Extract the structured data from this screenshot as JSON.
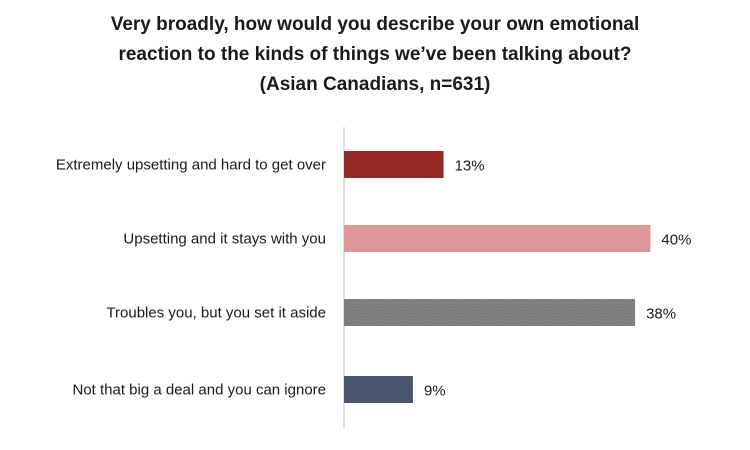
{
  "chart_data": {
    "type": "bar",
    "orientation": "horizontal",
    "title_lines": [
      "Very broadly, how would you describe your own emotional",
      "reaction to the kinds of things we’ve been talking about?",
      "(Asian Canadians, n=631)"
    ],
    "categories": [
      "Extremely upsetting and hard to get over",
      "Upsetting and it stays with you",
      "Troubles you, but you set it aside",
      "Not that big a deal and you can ignore"
    ],
    "values": [
      13,
      40,
      38,
      9
    ],
    "value_labels": [
      "13%",
      "40%",
      "38%",
      "9%"
    ],
    "colors": [
      "#962a24",
      "#de9799",
      "#8a8a8a",
      "#4a5670"
    ],
    "xlim": [
      0,
      100
    ],
    "grid": false,
    "legend": "none"
  }
}
